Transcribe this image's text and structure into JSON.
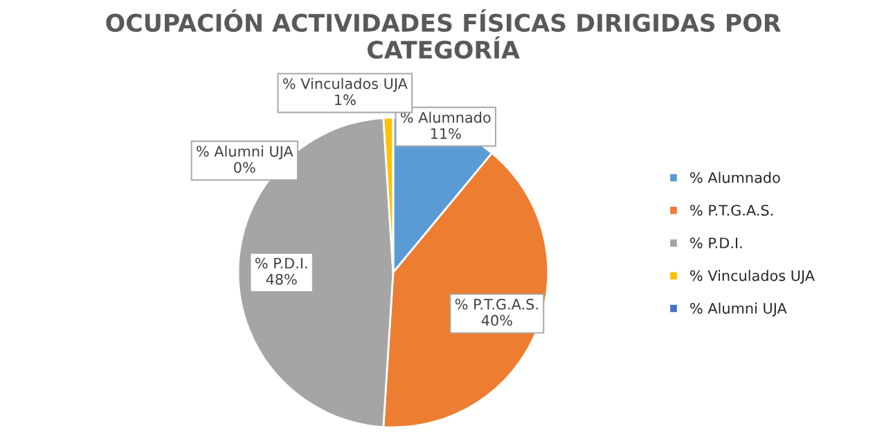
{
  "chart_data": {
    "type": "pie",
    "title": "OCUPACIÓN ACTIVIDADES FÍSICAS DIRIGIDAS POR CATEGORÍA",
    "categories": [
      "% Alumnado",
      "% P.T.G.A.S.",
      "% P.D.I.",
      "% Vinculados UJA",
      "% Alumni UJA"
    ],
    "values": [
      11,
      40,
      48,
      1,
      0
    ],
    "value_labels": [
      "11%",
      "40%",
      "48%",
      "1%",
      "0%"
    ],
    "colors": [
      "#5b9bd5",
      "#ed7d31",
      "#a5a5a5",
      "#ffc000",
      "#4472c4"
    ],
    "legend": "right"
  }
}
